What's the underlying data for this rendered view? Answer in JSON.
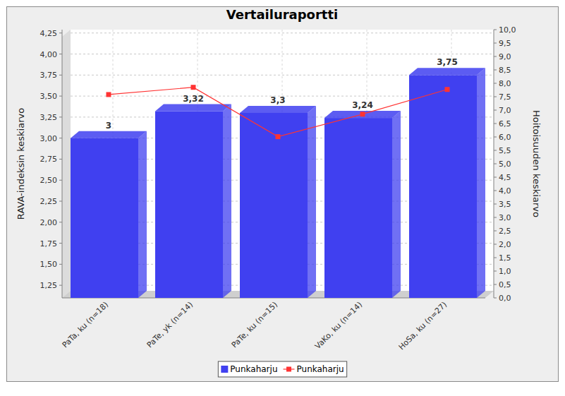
{
  "chart_data": {
    "type": "bar",
    "title": "Vertailuraportti",
    "ylabel": "RAVA-indeksin keskiarvo",
    "y2label": "Hoitoisuuden keskiarvo",
    "categories": [
      "PaTa, ku (n=18)",
      "PaTe, yk (n=14)",
      "PaTe, ku (n=15)",
      "VaKo, ku (n=14)",
      "HoSa, ku (n=27)"
    ],
    "series": [
      {
        "name": "Punkaharju",
        "type": "bar",
        "color": "#4040f0",
        "values": [
          3,
          3.32,
          3.3,
          3.24,
          3.75
        ],
        "value_labels": [
          "3",
          "3,32",
          "3,3",
          "3,24",
          "3,75"
        ]
      },
      {
        "name": "Punkaharju",
        "type": "line",
        "color": "#ff3333",
        "marker": "square",
        "axis": "y2",
        "values": [
          7.58,
          7.85,
          6.01,
          6.85,
          7.77
        ]
      }
    ],
    "ylim": [
      1.1,
      4.29
    ],
    "yticks": [
      {
        "value": 1.25,
        "label": "1,25"
      },
      {
        "value": 1.5,
        "label": "1,50"
      },
      {
        "value": 1.75,
        "label": "1,75"
      },
      {
        "value": 2,
        "label": "2,00"
      },
      {
        "value": 2.25,
        "label": "2,25"
      },
      {
        "value": 2.5,
        "label": "2,50"
      },
      {
        "value": 2.75,
        "label": "2,75"
      },
      {
        "value": 3,
        "label": "3,00"
      },
      {
        "value": 3.25,
        "label": "3,25"
      },
      {
        "value": 3.5,
        "label": "3,50"
      },
      {
        "value": 3.75,
        "label": "3,75"
      },
      {
        "value": 4,
        "label": "4,00"
      },
      {
        "value": 4.25,
        "label": "4,25"
      }
    ],
    "y2lim": [
      0,
      10
    ],
    "y2ticks": [
      {
        "value": 0,
        "label": "0,0"
      },
      {
        "value": 0.5,
        "label": "0,5"
      },
      {
        "value": 1,
        "label": "1,0"
      },
      {
        "value": 1.5,
        "label": "1,5"
      },
      {
        "value": 2,
        "label": "2,0"
      },
      {
        "value": 2.5,
        "label": "2,5"
      },
      {
        "value": 3,
        "label": "3,0"
      },
      {
        "value": 3.5,
        "label": "3,5"
      },
      {
        "value": 4,
        "label": "4,0"
      },
      {
        "value": 4.5,
        "label": "4,5"
      },
      {
        "value": 5,
        "label": "5,0"
      },
      {
        "value": 5.5,
        "label": "5,5"
      },
      {
        "value": 6,
        "label": "6,0"
      },
      {
        "value": 6.5,
        "label": "6,5"
      },
      {
        "value": 7,
        "label": "7,0"
      },
      {
        "value": 7.5,
        "label": "7,5"
      },
      {
        "value": 8,
        "label": "8,0"
      },
      {
        "value": 8.5,
        "label": "8,5"
      },
      {
        "value": 9,
        "label": "9,0"
      },
      {
        "value": 9.5,
        "label": "9,5"
      },
      {
        "value": 10,
        "label": "10,0"
      }
    ],
    "grid": true,
    "legend": "bottom",
    "data_labels": true
  }
}
